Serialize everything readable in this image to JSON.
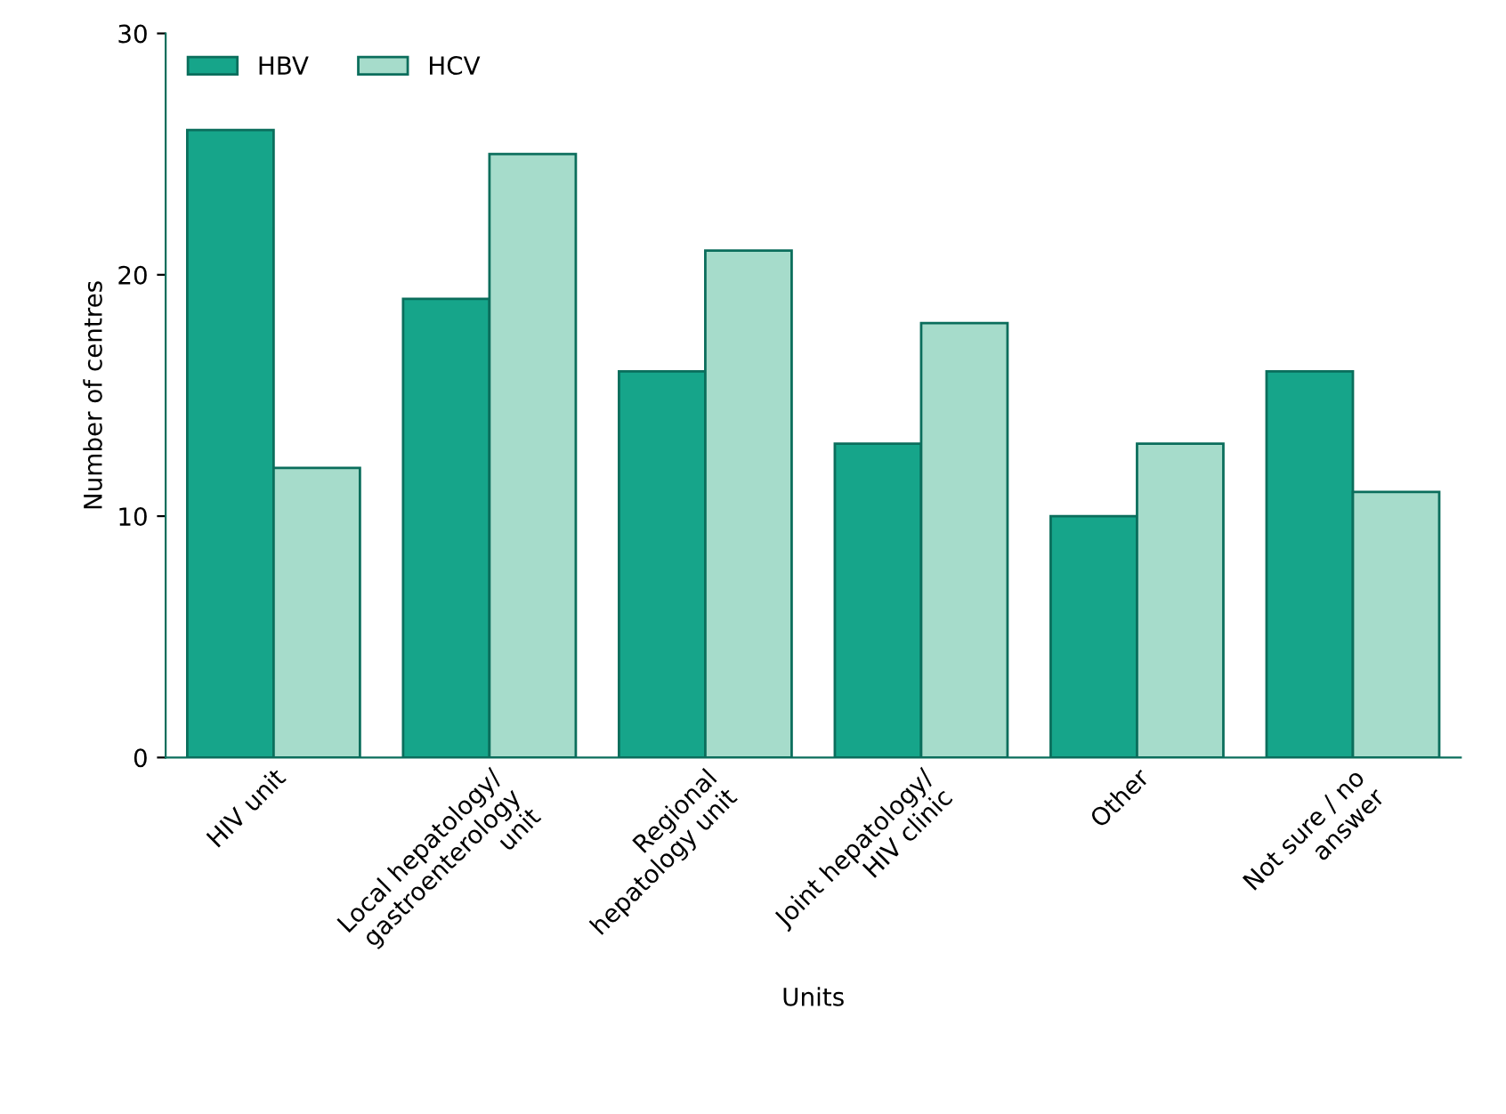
{
  "chart_data": {
    "type": "bar",
    "xlabel": "Units",
    "ylabel": "Number of centres",
    "categories": [
      "HIV unit",
      "Local hepatology/\ngastroenterology\nunit",
      "Regional\nhepatology unit",
      "Joint hepatology/\nHIV clinic",
      "Other",
      "Not sure / no\nanswer"
    ],
    "series": [
      {
        "name": "HBV",
        "color": "#16a58a",
        "values": [
          26,
          19,
          16,
          13,
          10,
          16
        ]
      },
      {
        "name": "HCV",
        "color": "#a6dccb",
        "values": [
          12,
          25,
          21,
          18,
          13,
          11
        ]
      }
    ],
    "ylim": [
      0,
      30
    ],
    "yticks": [
      0,
      10,
      20,
      30
    ],
    "grid": false,
    "legend": "top left"
  }
}
